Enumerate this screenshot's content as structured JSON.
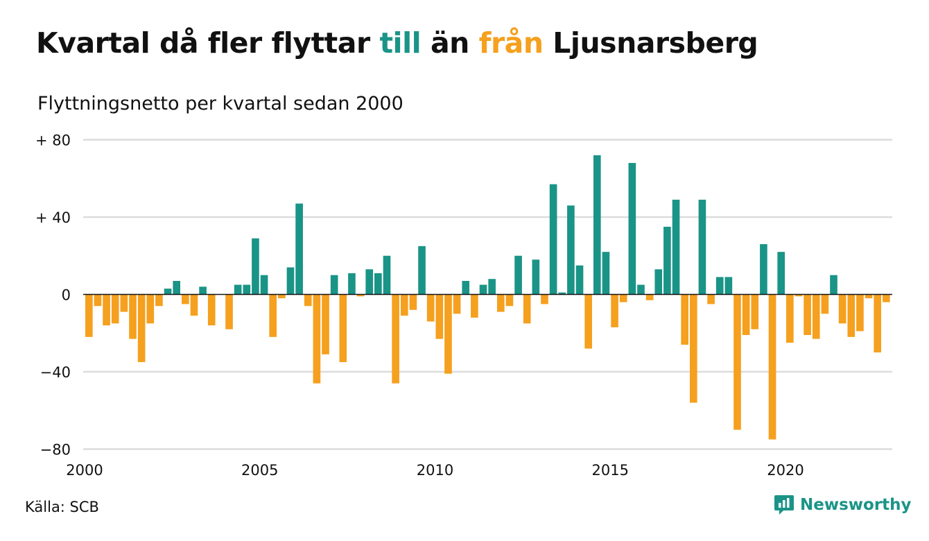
{
  "header": {
    "title_part1": "Kvartal då fler flyttar ",
    "title_pos": "till",
    "title_part2": " än ",
    "title_neg": "från",
    "title_part3": " Ljusnarsberg",
    "subtitle": "Flyttningsnetto per kvartal sedan 2000"
  },
  "footer": {
    "source": "Källa: SCB",
    "brand": "Newsworthy",
    "brand_icon": "newsworthy-logo-icon"
  },
  "colors": {
    "positive": "#1a9487",
    "negative": "#f5a01e",
    "grid": "#dcdcdc",
    "zero_line": "#111111",
    "text": "#111111"
  },
  "chart_data": {
    "type": "bar",
    "title": "Kvartal då fler flyttar till än från Ljusnarsberg",
    "subtitle": "Flyttningsnetto per kvartal sedan 2000",
    "xlabel": "",
    "ylabel": "",
    "x_start": 2000,
    "periods_per_year": 4,
    "x_ticks": [
      2000,
      2005,
      2010,
      2015,
      2020
    ],
    "x_tick_labels": [
      "2000",
      "2005",
      "2010",
      "2015",
      "2020"
    ],
    "y_ticks": [
      80,
      40,
      0,
      -40,
      -80
    ],
    "y_tick_labels": [
      "+ 80",
      "+ 40",
      "0",
      "−40",
      "−80"
    ],
    "ylim": [
      -80,
      80
    ],
    "grid": true,
    "values": [
      -22,
      -6,
      -16,
      -15,
      -9,
      -23,
      -35,
      -15,
      -6,
      3,
      7,
      -5,
      -11,
      4,
      -16,
      0,
      -18,
      5,
      5,
      29,
      10,
      -22,
      -2,
      14,
      47,
      -6,
      -46,
      -31,
      10,
      -35,
      11,
      -1,
      13,
      11,
      20,
      -46,
      -11,
      -8,
      25,
      -14,
      -23,
      -41,
      -10,
      7,
      -12,
      5,
      8,
      -9,
      -6,
      20,
      -15,
      18,
      -5,
      57,
      1,
      46,
      15,
      -28,
      72,
      22,
      -17,
      -4,
      68,
      5,
      -3,
      13,
      35,
      49,
      -26,
      -56,
      49,
      -5,
      9,
      9,
      -70,
      -21,
      -18,
      26,
      -75,
      22,
      -25,
      -1,
      -21,
      -23,
      -10,
      10,
      -15,
      -22,
      -19,
      -2,
      -30,
      -4
    ]
  }
}
